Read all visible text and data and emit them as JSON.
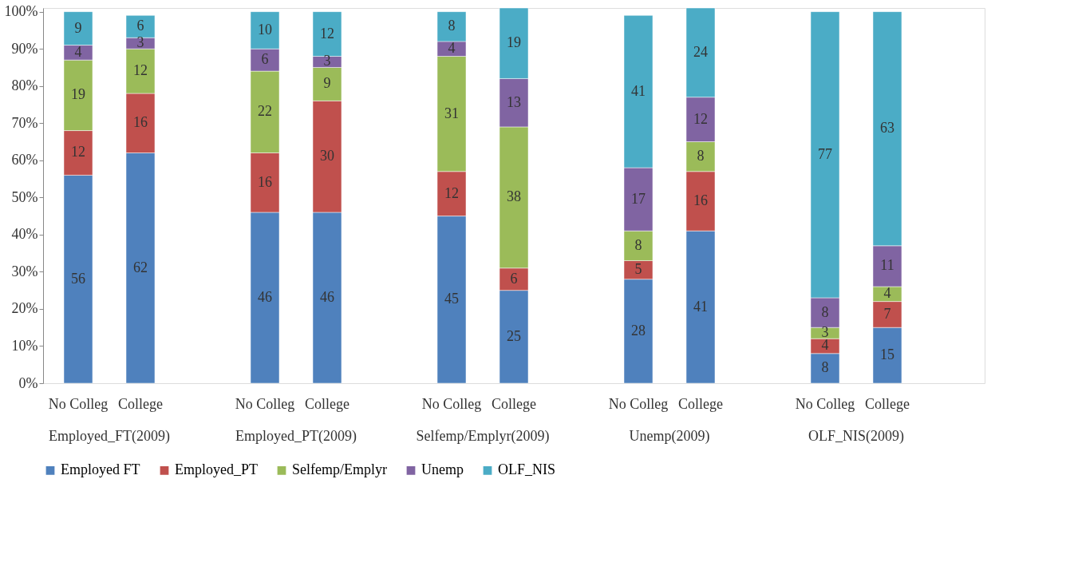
{
  "chart_data": {
    "type": "bar",
    "stacked": true,
    "data_labels": true,
    "legend": "bottom",
    "grid": false,
    "categories": [
      "No Colleg",
      "College",
      "No Colleg",
      "College",
      "No Colleg",
      "College",
      "No Colleg",
      "College",
      "No Colleg",
      "College"
    ],
    "annotations": [
      "Employed_FT(2009)",
      "Employed_PT(2009)",
      "Selfemp/Emplyr(2009)",
      "Unemp(2009)",
      "OLF_NIS(2009)"
    ],
    "ylim": [
      0,
      101
    ],
    "yticks": [
      {
        "value": 0,
        "label": "0%"
      },
      {
        "value": 10,
        "label": "10%"
      },
      {
        "value": 20,
        "label": "20%"
      },
      {
        "value": 30,
        "label": "30%"
      },
      {
        "value": 40,
        "label": "40%"
      },
      {
        "value": 50,
        "label": "50%"
      },
      {
        "value": 60,
        "label": "60%"
      },
      {
        "value": 70,
        "label": "70%"
      },
      {
        "value": 80,
        "label": "80%"
      },
      {
        "value": 90,
        "label": "90%"
      },
      {
        "value": 100,
        "label": "100%"
      }
    ],
    "series": [
      {
        "name": "Employed FT",
        "color": "#4f81bd",
        "values": [
          56,
          62,
          46,
          46,
          45,
          25,
          28,
          41,
          8,
          15
        ]
      },
      {
        "name": "Employed_PT",
        "color": "#c0504d",
        "values": [
          12,
          16,
          16,
          30,
          12,
          6,
          5,
          16,
          4,
          7
        ]
      },
      {
        "name": "Selfemp/Emplyr",
        "color": "#9bbb59",
        "values": [
          19,
          12,
          22,
          9,
          31,
          38,
          8,
          8,
          3,
          4
        ]
      },
      {
        "name": "Unemp",
        "color": "#8064a2",
        "values": [
          4,
          3,
          6,
          3,
          4,
          13,
          17,
          12,
          8,
          11
        ]
      },
      {
        "name": "OLF_NIS",
        "color": "#4bacc6",
        "values": [
          9,
          6,
          10,
          12,
          8,
          19,
          41,
          24,
          77,
          63
        ]
      }
    ]
  }
}
